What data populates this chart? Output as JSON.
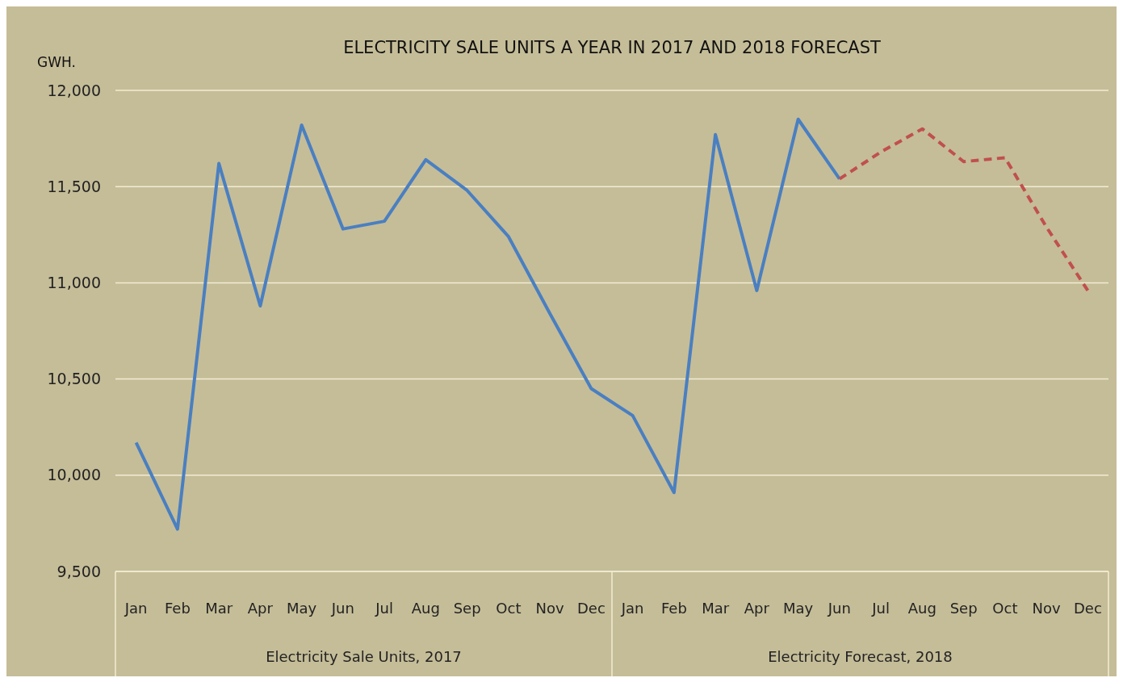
{
  "chart_data": {
    "type": "line",
    "title": "ELECTRICITY SALE UNITS A YEAR IN 2017 AND 2018 FORECAST",
    "ylabel": "GWH.",
    "categories": [
      "Jan",
      "Feb",
      "Mar",
      "Apr",
      "May",
      "Jun",
      "Jul",
      "Aug",
      "Sep",
      "Oct",
      "Nov",
      "Dec",
      "Jan",
      "Feb",
      "Mar",
      "Apr",
      "May",
      "Jun",
      "Jul",
      "Aug",
      "Sep",
      "Oct",
      "Nov",
      "Dec"
    ],
    "annotations": [
      "Electricity Sale Units, 2017",
      "Electricity Forecast, 2018"
    ],
    "series": [
      {
        "color": "#4a7fc1",
        "line_style": "solid",
        "values": [
          10170,
          9720,
          11620,
          10880,
          11820,
          11280,
          11320,
          11640,
          11480,
          11240,
          10840,
          10450,
          10310,
          9910,
          11770,
          10960,
          11850,
          11540,
          null,
          null,
          null,
          null,
          null,
          null
        ]
      },
      {
        "color": "#c0504d",
        "line_style": "dashed",
        "values": [
          null,
          null,
          null,
          null,
          null,
          null,
          null,
          null,
          null,
          null,
          null,
          null,
          null,
          null,
          null,
          null,
          null,
          11540,
          11680,
          11800,
          11630,
          11650,
          11290,
          10960
        ]
      }
    ],
    "ylim": [
      9500,
      12000
    ],
    "yticks": [
      {
        "value": 9500,
        "label": "9,500"
      },
      {
        "value": 10000,
        "label": "10,000"
      },
      {
        "value": 10500,
        "label": "10,500"
      },
      {
        "value": 11000,
        "label": "11,000"
      },
      {
        "value": 11500,
        "label": "11,500"
      },
      {
        "value": 12000,
        "label": "12,000"
      }
    ],
    "grid": "y",
    "marker": "none"
  }
}
